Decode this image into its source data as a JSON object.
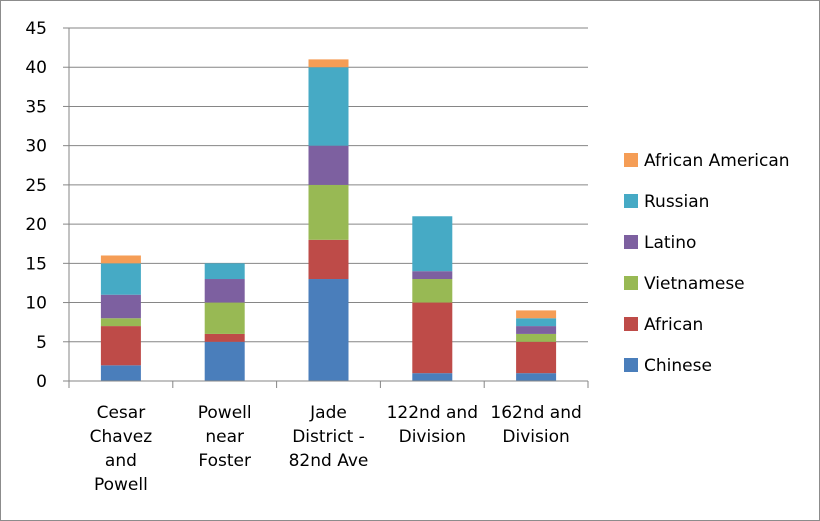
{
  "chart_data": {
    "type": "bar",
    "stacked": true,
    "categories": [
      [
        "Cesar",
        "Chavez",
        "and",
        "Powell"
      ],
      [
        "Powell",
        "near",
        "Foster"
      ],
      [
        "Jade",
        "District -",
        "82nd Ave"
      ],
      [
        "122nd and",
        "Division"
      ],
      [
        "162nd and",
        "Division"
      ]
    ],
    "series": [
      {
        "name": "Chinese",
        "color": "#4a7ebb",
        "values": [
          2,
          5,
          13,
          1,
          1
        ]
      },
      {
        "name": "African",
        "color": "#be4b48",
        "values": [
          5,
          1,
          5,
          9,
          4
        ]
      },
      {
        "name": "Vietnamese",
        "color": "#98b954",
        "values": [
          1,
          4,
          7,
          3,
          1
        ]
      },
      {
        "name": "Latino",
        "color": "#7d60a0",
        "values": [
          3,
          3,
          5,
          1,
          1
        ]
      },
      {
        "name": "Russian",
        "color": "#46aac5",
        "values": [
          4,
          2,
          10,
          7,
          1
        ]
      },
      {
        "name": "African American",
        "color": "#f59d56",
        "values": [
          1,
          0,
          1,
          0,
          1
        ]
      }
    ],
    "ylim": [
      0,
      45
    ],
    "yticks": [
      0,
      5,
      10,
      15,
      20,
      25,
      30,
      35,
      40,
      45
    ],
    "grid": true,
    "legend_position": "right"
  }
}
